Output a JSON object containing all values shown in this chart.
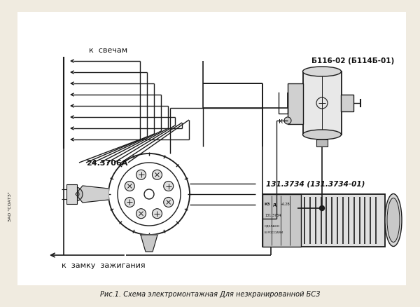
{
  "bg_color": "#f0ebe0",
  "title_text": "Рис.1. Схема электромонтажная Для незкранированной БСЗ",
  "label_k_svecham": "к  свечам",
  "label_k_zamku": "к  замку  зажигания",
  "label_24_3706a": "24.3706А",
  "label_b116": "Б116-02 (Б114Б-01)",
  "label_131": "131.3734 (131.3734-01)",
  "label_k": "к",
  "label_zao": "ЗАО \"СОАТЗ\"",
  "line_color": "#1a1a1a",
  "text_color": "#111111"
}
